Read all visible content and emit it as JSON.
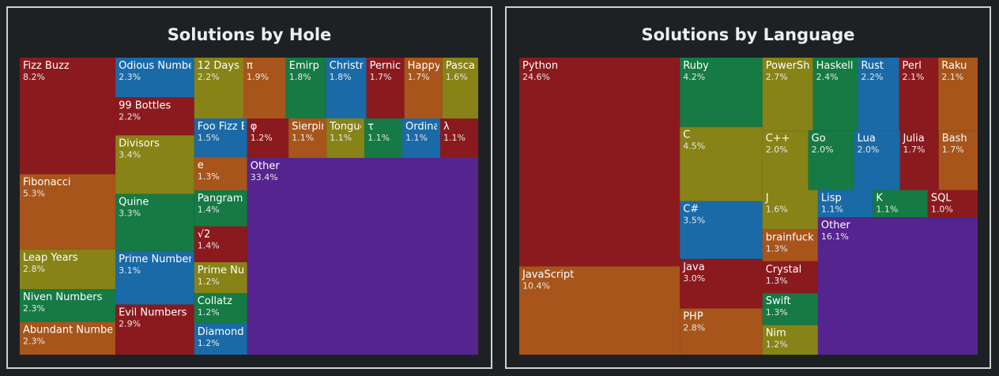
{
  "chart_data": [
    {
      "type": "treemap",
      "title": "Solutions by Hole",
      "labels": [
        "Fizz Buzz",
        "Fibonacci",
        "Leap Years",
        "Niven Numbers",
        "Abundant Numbers",
        "Odious Numbers",
        "99 Bottles",
        "Divisors",
        "Quine",
        "Prime Numbers",
        "Evil Numbers",
        "12 Days",
        "π",
        "Emirp Numbers",
        "Christmas Trees",
        "Pernicious Numbers",
        "Happy Numbers",
        "Pascal's Triangle",
        "Foo Fizz Buzz",
        "e",
        "Pangram Grep",
        "√2",
        "Prime Numbers (Long)",
        "Collatz",
        "Diamonds",
        "φ",
        "Sierpiński Triangle",
        "Tongue-twisters",
        "τ",
        "Ordinal Numbers",
        "λ",
        "Other"
      ],
      "values": [
        8.2,
        5.3,
        2.8,
        2.3,
        2.3,
        2.3,
        2.2,
        3.4,
        3.3,
        3.1,
        2.9,
        2.2,
        1.9,
        1.8,
        1.8,
        1.7,
        1.7,
        1.6,
        1.5,
        1.3,
        1.4,
        1.4,
        1.2,
        1.2,
        1.2,
        1.2,
        1.1,
        1.1,
        1.1,
        1.1,
        1.1,
        33.4
      ],
      "value_labels": [
        "8.2%",
        "5.3%",
        "2.8%",
        "2.3%",
        "2.3%",
        "2.3%",
        "2.2%",
        "3.4%",
        "3.3%",
        "3.1%",
        "2.9%",
        "2.2%",
        "1.9%",
        "1.8%",
        "1.8%",
        "1.7%",
        "1.7%",
        "1.6%",
        "1.5%",
        "1.3%",
        "1.4%",
        "1.4%",
        "1.2%",
        "1.2%",
        "1.2%",
        "1.2%",
        "1.1%",
        "1.1%",
        "1.1%",
        "1.1%",
        "1.1%",
        "33.4%"
      ],
      "colors": [
        "#8a1a1e",
        "#a7551a",
        "#878316",
        "#157a44",
        "#a7551a",
        "#1a6aa8",
        "#8a1a1e",
        "#878316",
        "#157a44",
        "#1a6aa8",
        "#8a1a1e",
        "#878316",
        "#a7551a",
        "#157a44",
        "#1a6aa8",
        "#8a1a1e",
        "#a7551a",
        "#878316",
        "#1a6aa8",
        "#a7551a",
        "#157a44",
        "#8a1a1e",
        "#878316",
        "#157a44",
        "#1a6aa8",
        "#8a1a1e",
        "#a7551a",
        "#878316",
        "#157a44",
        "#1a6aa8",
        "#8a1a1e",
        "#55248f"
      ]
    },
    {
      "type": "treemap",
      "title": "Solutions by Language",
      "labels": [
        "Python",
        "JavaScript",
        "Ruby",
        "C",
        "C#",
        "Java",
        "PHP",
        "PowerShell",
        "Haskell",
        "Rust",
        "Perl",
        "Raku",
        "C++",
        "Go",
        "Lua",
        "Julia",
        "Bash",
        "J",
        "brainfuck",
        "Crystal",
        "Swift",
        "Nim",
        "Lisp",
        "K",
        "SQL",
        "Other"
      ],
      "values": [
        24.6,
        10.4,
        4.2,
        4.5,
        3.5,
        3.0,
        2.8,
        2.7,
        2.4,
        2.2,
        2.1,
        2.1,
        2.0,
        2.0,
        2.0,
        1.7,
        1.7,
        1.6,
        1.3,
        1.3,
        1.3,
        1.2,
        1.1,
        1.1,
        1.0,
        16.1
      ],
      "value_labels": [
        "24.6%",
        "10.4%",
        "4.2%",
        "4.5%",
        "3.5%",
        "3.0%",
        "2.8%",
        "2.7%",
        "2.4%",
        "2.2%",
        "2.1%",
        "2.1%",
        "2.0%",
        "2.0%",
        "2.0%",
        "1.7%",
        "1.7%",
        "1.6%",
        "1.3%",
        "1.3%",
        "1.3%",
        "1.2%",
        "1.1%",
        "1.1%",
        "1.0%",
        "16.1%"
      ],
      "colors": [
        "#8a1a1e",
        "#a7551a",
        "#157a44",
        "#878316",
        "#1a6aa8",
        "#8a1a1e",
        "#a7551a",
        "#878316",
        "#157a44",
        "#1a6aa8",
        "#8a1a1e",
        "#a7551a",
        "#878316",
        "#157a44",
        "#1a6aa8",
        "#8a1a1e",
        "#a7551a",
        "#878316",
        "#a7551a",
        "#8a1a1e",
        "#157a44",
        "#878316",
        "#1a6aa8",
        "#157a44",
        "#8a1a1e",
        "#55248f"
      ]
    }
  ]
}
